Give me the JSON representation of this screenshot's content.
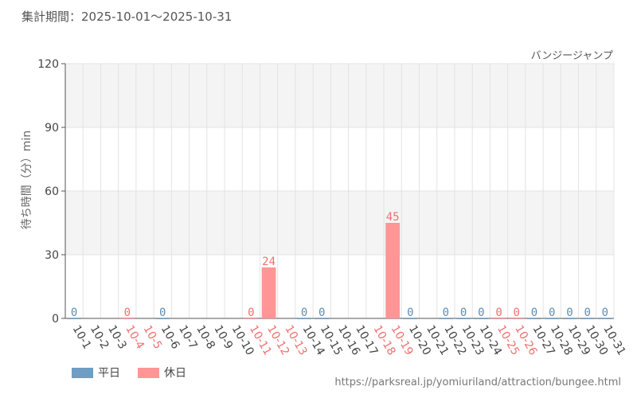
{
  "header": {
    "period_label": "集計期間：2025-10-01〜2025-10-31"
  },
  "footer": {
    "source_url": "https://parksreal.jp/yomiuriland/attraction/bungee.html"
  },
  "colors": {
    "weekday": "#6f9dc3",
    "holiday": "#ff9595",
    "holiday_label": "#ef7070",
    "weekday_label": "#5b8db8",
    "grid": "#e3e3e3",
    "band": "#f4f4f4",
    "axis": "#555555"
  },
  "chart_data": {
    "type": "bar",
    "title": "",
    "subtitle": "バンジージャンプ",
    "xlabel": "",
    "ylabel": "待ち時間（分）min",
    "ylim": [
      0,
      120
    ],
    "yticks": [
      0,
      30,
      60,
      90,
      120
    ],
    "grid": true,
    "legend_position": "bottom-left",
    "legend": [
      {
        "key": "weekday",
        "label": "平日"
      },
      {
        "key": "holiday",
        "label": "休日"
      }
    ],
    "categories": [
      "10-1",
      "10-2",
      "10-3",
      "10-4",
      "10-5",
      "10-6",
      "10-7",
      "10-8",
      "10-9",
      "10-10",
      "10-11",
      "10-12",
      "10-13",
      "10-14",
      "10-15",
      "10-16",
      "10-17",
      "10-18",
      "10-19",
      "10-20",
      "10-21",
      "10-22",
      "10-23",
      "10-24",
      "10-25",
      "10-26",
      "10-27",
      "10-28",
      "10-29",
      "10-30",
      "10-31"
    ],
    "day_type": [
      "weekday",
      "weekday",
      "weekday",
      "holiday",
      "holiday",
      "weekday",
      "weekday",
      "weekday",
      "weekday",
      "weekday",
      "holiday",
      "holiday",
      "holiday",
      "weekday",
      "weekday",
      "weekday",
      "weekday",
      "holiday",
      "holiday",
      "weekday",
      "weekday",
      "weekday",
      "weekday",
      "weekday",
      "holiday",
      "holiday",
      "weekday",
      "weekday",
      "weekday",
      "weekday",
      "weekday"
    ],
    "values": [
      0,
      null,
      null,
      0,
      null,
      0,
      null,
      null,
      null,
      null,
      0,
      24,
      null,
      0,
      0,
      null,
      null,
      null,
      45,
      0,
      null,
      0,
      0,
      0,
      0,
      0,
      0,
      0,
      0,
      0,
      0
    ]
  }
}
